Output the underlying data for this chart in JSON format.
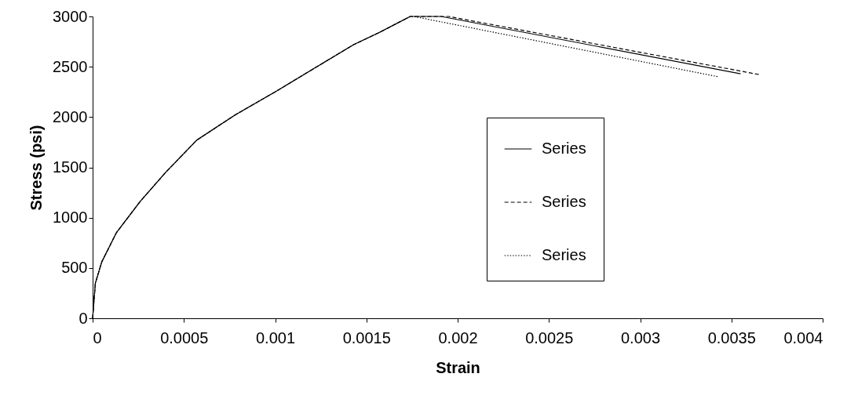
{
  "chart_data": {
    "type": "line",
    "xlabel": "Strain",
    "ylabel": "Stress (psi)",
    "xlim": [
      0,
      0.004
    ],
    "xticks": [
      0,
      0.0005,
      0.001,
      0.0015,
      0.002,
      0.0025,
      0.003,
      0.0035,
      0.004
    ],
    "ylim": [
      0,
      3000
    ],
    "yticks": [
      0,
      500,
      1000,
      1500,
      2000,
      2500,
      3000
    ],
    "grid": false,
    "legend": "bottom right",
    "marker": "none",
    "series": [
      {
        "name": "Series",
        "color": "#000000",
        "line_style": "solid",
        "x": [
          0,
          1.5e-05,
          5e-05,
          0.00013,
          0.00026,
          0.0004,
          0.00057,
          0.00078,
          0.001,
          0.00121,
          0.00143,
          0.00157,
          0.00174,
          0.00191,
          0.00355
        ],
        "values": [
          0,
          350,
          560,
          850,
          1160,
          1450,
          1770,
          2020,
          2250,
          2480,
          2720,
          2840,
          3000,
          3000,
          2430
        ]
      },
      {
        "name": "Series",
        "color": "#000000",
        "line_style": "dashed",
        "x": [
          0,
          1.5e-05,
          5e-05,
          0.00013,
          0.00026,
          0.0004,
          0.00057,
          0.00078,
          0.001,
          0.00121,
          0.00143,
          0.00157,
          0.00174,
          0.00195,
          0.00366
        ],
        "values": [
          0,
          350,
          560,
          850,
          1160,
          1450,
          1770,
          2020,
          2250,
          2480,
          2720,
          2840,
          3000,
          3000,
          2420
        ]
      },
      {
        "name": "Series",
        "color": "#000000",
        "line_style": "dotted",
        "x": [
          0,
          1.5e-05,
          5e-05,
          0.00013,
          0.00026,
          0.0004,
          0.00057,
          0.00078,
          0.001,
          0.00121,
          0.00143,
          0.00157,
          0.00174,
          0.00176,
          0.00343
        ],
        "values": [
          0,
          350,
          560,
          850,
          1160,
          1450,
          1770,
          2020,
          2250,
          2480,
          2720,
          2840,
          3000,
          3000,
          2400
        ]
      }
    ]
  }
}
